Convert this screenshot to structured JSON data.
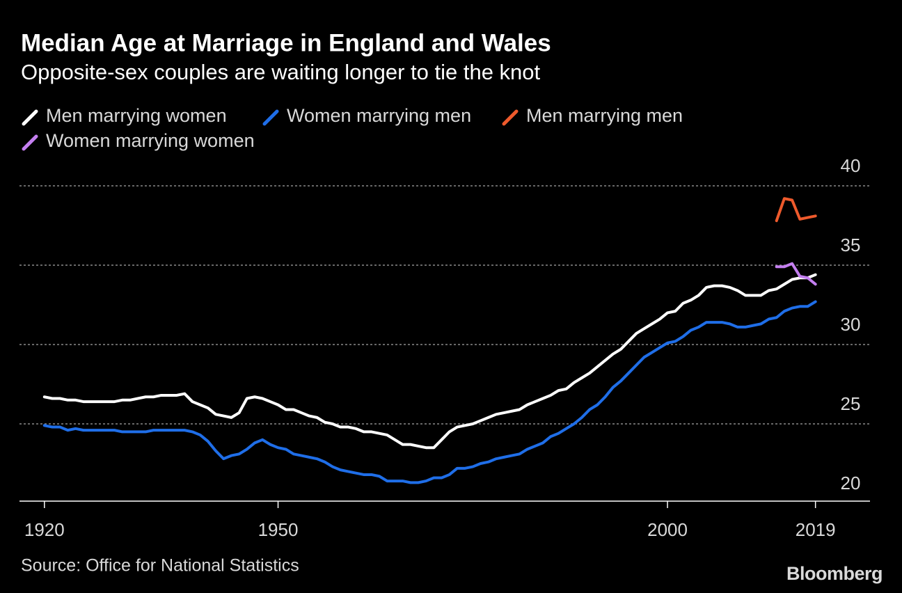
{
  "chart_data": {
    "type": "line",
    "title": "Median Age at Marriage in England and Wales",
    "subtitle": "Opposite-sex couples are waiting longer to tie the knot",
    "source": "Source: Office for National Statistics",
    "brand": "Bloomberg",
    "xlim": [
      1916.8,
      2026
    ],
    "xticks": [
      1920,
      1950,
      2000,
      2019
    ],
    "ylim": [
      20,
      40
    ],
    "yticks": [
      20,
      25,
      30,
      35,
      40
    ],
    "grid": true,
    "series": [
      {
        "name": "Men marrying women",
        "color": "#ffffff",
        "x": [
          1920,
          1921,
          1922,
          1923,
          1924,
          1925,
          1926,
          1927,
          1928,
          1929,
          1930,
          1931,
          1932,
          1933,
          1934,
          1935,
          1936,
          1937,
          1938,
          1939,
          1940,
          1941,
          1942,
          1943,
          1944,
          1945,
          1946,
          1947,
          1948,
          1949,
          1950,
          1951,
          1952,
          1953,
          1954,
          1955,
          1956,
          1957,
          1958,
          1959,
          1960,
          1961,
          1962,
          1963,
          1964,
          1965,
          1966,
          1967,
          1968,
          1969,
          1970,
          1971,
          1972,
          1973,
          1974,
          1975,
          1976,
          1977,
          1978,
          1979,
          1980,
          1981,
          1982,
          1983,
          1984,
          1985,
          1986,
          1987,
          1988,
          1989,
          1990,
          1991,
          1992,
          1993,
          1994,
          1995,
          1996,
          1997,
          1998,
          1999,
          2000,
          2001,
          2002,
          2003,
          2004,
          2005,
          2006,
          2007,
          2008,
          2009,
          2010,
          2011,
          2012,
          2013,
          2014,
          2015,
          2016,
          2017,
          2018,
          2019
        ],
        "values": [
          26.7,
          26.6,
          26.6,
          26.5,
          26.5,
          26.4,
          26.4,
          26.4,
          26.4,
          26.4,
          26.5,
          26.5,
          26.6,
          26.7,
          26.7,
          26.8,
          26.8,
          26.8,
          26.9,
          26.4,
          26.2,
          26.0,
          25.6,
          25.5,
          25.4,
          25.7,
          26.6,
          26.7,
          26.6,
          26.4,
          26.2,
          25.9,
          25.9,
          25.7,
          25.5,
          25.4,
          25.1,
          25.0,
          24.8,
          24.8,
          24.7,
          24.5,
          24.5,
          24.4,
          24.3,
          24.0,
          23.7,
          23.7,
          23.6,
          23.5,
          23.5,
          24.0,
          24.5,
          24.8,
          24.9,
          25.0,
          25.2,
          25.4,
          25.6,
          25.7,
          25.8,
          25.9,
          26.2,
          26.4,
          26.6,
          26.8,
          27.1,
          27.2,
          27.6,
          27.9,
          28.2,
          28.6,
          29.0,
          29.4,
          29.7,
          30.2,
          30.7,
          31.0,
          31.3,
          31.6,
          32.0,
          32.1,
          32.6,
          32.8,
          33.1,
          33.6,
          33.7,
          33.7,
          33.6,
          33.4,
          33.1,
          33.1,
          33.1,
          33.4,
          33.5,
          33.8,
          34.1,
          34.2,
          34.2,
          34.4
        ]
      },
      {
        "name": "Women marrying men",
        "color": "#1f6ee8",
        "x": [
          1920,
          1921,
          1922,
          1923,
          1924,
          1925,
          1926,
          1927,
          1928,
          1929,
          1930,
          1931,
          1932,
          1933,
          1934,
          1935,
          1936,
          1937,
          1938,
          1939,
          1940,
          1941,
          1942,
          1943,
          1944,
          1945,
          1946,
          1947,
          1948,
          1949,
          1950,
          1951,
          1952,
          1953,
          1954,
          1955,
          1956,
          1957,
          1958,
          1959,
          1960,
          1961,
          1962,
          1963,
          1964,
          1965,
          1966,
          1967,
          1968,
          1969,
          1970,
          1971,
          1972,
          1973,
          1974,
          1975,
          1976,
          1977,
          1978,
          1979,
          1980,
          1981,
          1982,
          1983,
          1984,
          1985,
          1986,
          1987,
          1988,
          1989,
          1990,
          1991,
          1992,
          1993,
          1994,
          1995,
          1996,
          1997,
          1998,
          1999,
          2000,
          2001,
          2002,
          2003,
          2004,
          2005,
          2006,
          2007,
          2008,
          2009,
          2010,
          2011,
          2012,
          2013,
          2014,
          2015,
          2016,
          2017,
          2018,
          2019
        ],
        "values": [
          24.9,
          24.8,
          24.8,
          24.6,
          24.7,
          24.6,
          24.6,
          24.6,
          24.6,
          24.6,
          24.5,
          24.5,
          24.5,
          24.5,
          24.6,
          24.6,
          24.6,
          24.6,
          24.6,
          24.5,
          24.3,
          23.9,
          23.3,
          22.8,
          23.0,
          23.1,
          23.4,
          23.8,
          24.0,
          23.7,
          23.5,
          23.4,
          23.1,
          23.0,
          22.9,
          22.8,
          22.6,
          22.3,
          22.1,
          22.0,
          21.9,
          21.8,
          21.8,
          21.7,
          21.4,
          21.4,
          21.4,
          21.3,
          21.3,
          21.4,
          21.6,
          21.6,
          21.8,
          22.2,
          22.2,
          22.3,
          22.5,
          22.6,
          22.8,
          22.9,
          23.0,
          23.1,
          23.4,
          23.6,
          23.8,
          24.2,
          24.4,
          24.7,
          25.0,
          25.4,
          25.9,
          26.2,
          26.7,
          27.3,
          27.7,
          28.2,
          28.7,
          29.2,
          29.5,
          29.8,
          30.1,
          30.2,
          30.5,
          30.9,
          31.1,
          31.4,
          31.4,
          31.4,
          31.3,
          31.1,
          31.1,
          31.2,
          31.3,
          31.6,
          31.7,
          32.1,
          32.3,
          32.4,
          32.4,
          32.7
        ]
      },
      {
        "name": "Men marrying men",
        "color": "#ee5a2c",
        "x": [
          2014,
          2015,
          2016,
          2017,
          2018,
          2019
        ],
        "values": [
          37.8,
          39.2,
          39.1,
          37.9,
          38.0,
          38.1
        ]
      },
      {
        "name": "Women marrying women",
        "color": "#c47ff0",
        "x": [
          2014,
          2015,
          2016,
          2017,
          2018,
          2019
        ],
        "values": [
          34.9,
          34.9,
          35.1,
          34.3,
          34.2,
          33.8
        ]
      }
    ]
  }
}
